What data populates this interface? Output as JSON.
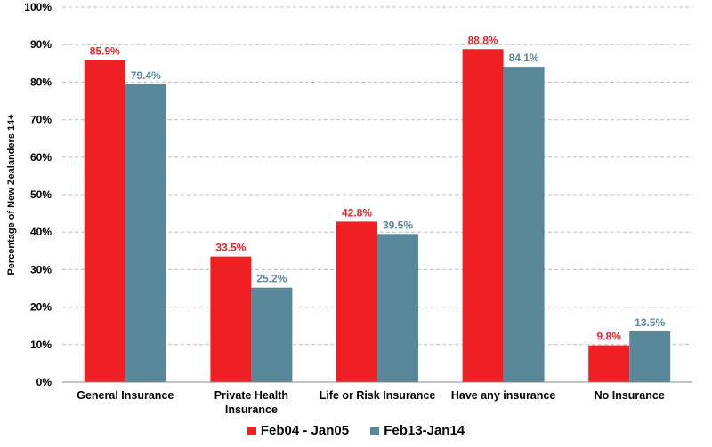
{
  "chart_data": {
    "type": "bar",
    "title": "",
    "xlabel": "",
    "ylabel": "Percentage of New Zealanders 14+",
    "ylim": [
      0,
      100
    ],
    "yticks": [
      "0%",
      "10%",
      "20%",
      "30%",
      "40%",
      "50%",
      "60%",
      "70%",
      "80%",
      "90%",
      "100%"
    ],
    "categories": [
      [
        "General Insurance"
      ],
      [
        "Private Health",
        "Insurance"
      ],
      [
        "Life or Risk Insurance"
      ],
      [
        "Have any insurance"
      ],
      [
        "No Insurance"
      ]
    ],
    "series": [
      {
        "name": "Feb04 - Jan05",
        "color": "#ee2024",
        "label_color": "#e8242a",
        "values": [
          85.9,
          33.5,
          42.8,
          88.8,
          9.8
        ],
        "labels": [
          "85.9%",
          "33.5%",
          "42.8%",
          "88.8%",
          "9.8%"
        ]
      },
      {
        "name": "Feb13-Jan14",
        "color": "#5a889b",
        "label_color": "#5a889b",
        "values": [
          79.4,
          25.2,
          39.5,
          84.1,
          13.5
        ],
        "labels": [
          "79.4%",
          "25.2%",
          "39.5%",
          "84.1%",
          "13.5%"
        ]
      }
    ],
    "grid": true,
    "legend_position": "bottom"
  }
}
